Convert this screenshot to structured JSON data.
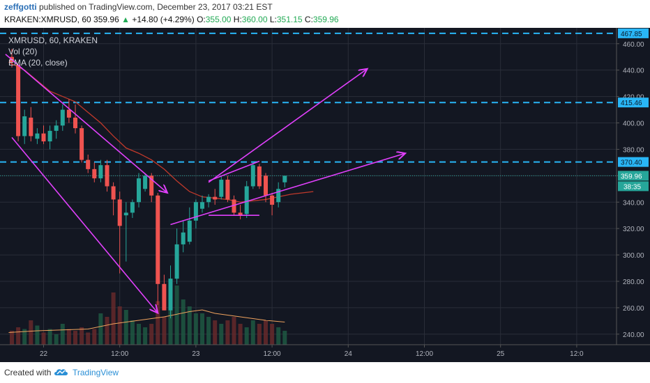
{
  "header": {
    "author": "zeffgotti",
    "published": "published on TradingView.com, December 23, 2017 03:21 EST",
    "symbol": "KRAKEN:XMRUSD, 60",
    "last": "359.96",
    "change": "+14.80 (+4.29%)",
    "o_label": "O:",
    "o_val": "355.00",
    "h_label": "H:",
    "h_val": "360.00",
    "l_label": "L:",
    "l_val": "351.15",
    "c_label": "C:",
    "c_val": "359.96"
  },
  "legend": {
    "line1": "XMRUSD, 60, KRAKEN",
    "line2": "Vol (20)",
    "line3": "EMA (20, close)"
  },
  "footer": {
    "created": "Created with",
    "brand": "TradingView"
  },
  "colors": {
    "up": "#26a69a",
    "down": "#ef5350",
    "ema": "#c0392b",
    "vol_ma": "#f0a35e",
    "arrow": "#e040fb",
    "hline": "#29b6f6",
    "grid": "#2a2e39",
    "text": "#b2b5be"
  },
  "chart_data": {
    "type": "candlestick",
    "ylim": [
      232,
      472
    ],
    "y_ticks": [
      240,
      260,
      280,
      300,
      320,
      340,
      360,
      380,
      400,
      420,
      440,
      460
    ],
    "x_ticks": [
      {
        "t": 5,
        "label": "22"
      },
      {
        "t": 17,
        "label": "12:00"
      },
      {
        "t": 29,
        "label": "23"
      },
      {
        "t": 41,
        "label": "12:00"
      },
      {
        "t": 53,
        "label": "24"
      },
      {
        "t": 65,
        "label": "12:00"
      },
      {
        "t": 77,
        "label": "25"
      },
      {
        "t": 89,
        "label": "12:0"
      }
    ],
    "price_lines": [
      {
        "value": 467.85,
        "label": "467.85"
      },
      {
        "value": 415.46,
        "label": "415.46"
      },
      {
        "value": 370.4,
        "label": "370.40"
      }
    ],
    "last_price": {
      "value": 359.96,
      "label": "359.96",
      "countdown": "38:35"
    },
    "candles": [
      {
        "o": 450,
        "h": 456,
        "l": 442,
        "c": 446
      },
      {
        "o": 444,
        "h": 446,
        "l": 386,
        "c": 390
      },
      {
        "o": 390,
        "h": 410,
        "l": 384,
        "c": 405
      },
      {
        "o": 404,
        "h": 412,
        "l": 386,
        "c": 390
      },
      {
        "o": 388,
        "h": 396,
        "l": 384,
        "c": 392
      },
      {
        "o": 392,
        "h": 398,
        "l": 384,
        "c": 386
      },
      {
        "o": 386,
        "h": 398,
        "l": 380,
        "c": 394
      },
      {
        "o": 394,
        "h": 402,
        "l": 388,
        "c": 398
      },
      {
        "o": 398,
        "h": 414,
        "l": 394,
        "c": 410
      },
      {
        "o": 410,
        "h": 418,
        "l": 400,
        "c": 404
      },
      {
        "o": 404,
        "h": 414,
        "l": 392,
        "c": 396
      },
      {
        "o": 396,
        "h": 398,
        "l": 370,
        "c": 372
      },
      {
        "o": 372,
        "h": 376,
        "l": 362,
        "c": 365
      },
      {
        "o": 365,
        "h": 370,
        "l": 355,
        "c": 358
      },
      {
        "o": 358,
        "h": 372,
        "l": 355,
        "c": 368
      },
      {
        "o": 368,
        "h": 372,
        "l": 348,
        "c": 352
      },
      {
        "o": 352,
        "h": 355,
        "l": 330,
        "c": 342
      },
      {
        "o": 342,
        "h": 348,
        "l": 286,
        "c": 322
      },
      {
        "o": 330,
        "h": 340,
        "l": 295,
        "c": 332
      },
      {
        "o": 332,
        "h": 342,
        "l": 328,
        "c": 340
      },
      {
        "o": 340,
        "h": 362,
        "l": 336,
        "c": 358
      },
      {
        "o": 350,
        "h": 362,
        "l": 348,
        "c": 360
      },
      {
        "o": 360,
        "h": 362,
        "l": 340,
        "c": 345
      },
      {
        "o": 345,
        "h": 347,
        "l": 262,
        "c": 278
      },
      {
        "o": 278,
        "h": 285,
        "l": 258,
        "c": 258
      },
      {
        "o": 258,
        "h": 292,
        "l": 252,
        "c": 282
      },
      {
        "o": 282,
        "h": 320,
        "l": 278,
        "c": 308
      },
      {
        "o": 308,
        "h": 326,
        "l": 302,
        "c": 317
      },
      {
        "o": 310,
        "h": 336,
        "l": 308,
        "c": 326
      },
      {
        "o": 326,
        "h": 342,
        "l": 320,
        "c": 340
      },
      {
        "o": 335,
        "h": 345,
        "l": 332,
        "c": 340
      },
      {
        "o": 340,
        "h": 346,
        "l": 336,
        "c": 344
      },
      {
        "o": 344,
        "h": 350,
        "l": 338,
        "c": 342
      },
      {
        "o": 344,
        "h": 360,
        "l": 342,
        "c": 357
      },
      {
        "o": 357,
        "h": 360,
        "l": 340,
        "c": 342
      },
      {
        "o": 342,
        "h": 345,
        "l": 330,
        "c": 332
      },
      {
        "o": 332,
        "h": 338,
        "l": 327,
        "c": 330
      },
      {
        "o": 331,
        "h": 356,
        "l": 328,
        "c": 352
      },
      {
        "o": 352,
        "h": 370,
        "l": 350,
        "c": 368
      },
      {
        "o": 367,
        "h": 369,
        "l": 350,
        "c": 352
      },
      {
        "o": 360,
        "h": 362,
        "l": 340,
        "c": 345
      },
      {
        "o": 345,
        "h": 347,
        "l": 330,
        "c": 338
      },
      {
        "o": 340,
        "h": 355,
        "l": 336,
        "c": 350
      },
      {
        "o": 355,
        "h": 360,
        "l": 351.15,
        "c": 359.96
      }
    ],
    "volume": [
      8,
      10,
      9,
      14,
      11,
      7,
      9,
      6,
      12,
      9,
      8,
      10,
      7,
      9,
      18,
      16,
      30,
      22,
      20,
      14,
      12,
      10,
      12,
      25,
      16,
      38,
      34,
      26,
      22,
      18,
      18,
      16,
      14,
      12,
      14,
      16,
      12,
      10,
      14,
      12,
      14,
      12,
      10,
      8
    ],
    "ema": [
      {
        "t": -0.5,
        "v": 446
      },
      {
        "t": 2,
        "v": 440
      },
      {
        "t": 4,
        "v": 432
      },
      {
        "t": 6,
        "v": 424
      },
      {
        "t": 8,
        "v": 420
      },
      {
        "t": 10,
        "v": 416
      },
      {
        "t": 12,
        "v": 408
      },
      {
        "t": 14,
        "v": 400
      },
      {
        "t": 16,
        "v": 390
      },
      {
        "t": 18,
        "v": 381
      },
      {
        "t": 20,
        "v": 377
      },
      {
        "t": 22,
        "v": 372
      },
      {
        "t": 24,
        "v": 365
      },
      {
        "t": 26,
        "v": 356
      },
      {
        "t": 28,
        "v": 348
      },
      {
        "t": 30,
        "v": 344
      },
      {
        "t": 32,
        "v": 343
      },
      {
        "t": 34,
        "v": 342
      },
      {
        "t": 36,
        "v": 340
      },
      {
        "t": 38,
        "v": 341
      },
      {
        "t": 40,
        "v": 342
      },
      {
        "t": 42,
        "v": 344
      },
      {
        "t": 44,
        "v": 346
      },
      {
        "t": 47.5,
        "v": 348
      }
    ],
    "vol_ma": [
      {
        "t": -0.5,
        "v": 7
      },
      {
        "t": 4,
        "v": 8
      },
      {
        "t": 8,
        "v": 8.5
      },
      {
        "t": 12,
        "v": 9
      },
      {
        "t": 16,
        "v": 12
      },
      {
        "t": 20,
        "v": 14
      },
      {
        "t": 24,
        "v": 16
      },
      {
        "t": 28,
        "v": 19
      },
      {
        "t": 30,
        "v": 20
      },
      {
        "t": 32,
        "v": 18
      },
      {
        "t": 36,
        "v": 16
      },
      {
        "t": 40,
        "v": 14
      },
      {
        "t": 43,
        "v": 13
      }
    ],
    "drawings": [
      {
        "x1": -1,
        "y1": 452,
        "x2": 24.5,
        "y2": 347,
        "head": true
      },
      {
        "x1": 0,
        "y1": 389,
        "x2": 23,
        "y2": 256,
        "head": true
      },
      {
        "x1": 25,
        "y1": 323,
        "x2": 62,
        "y2": 377,
        "head": true
      },
      {
        "x1": 31,
        "y1": 355,
        "x2": 56,
        "y2": 441,
        "head": true
      },
      {
        "x1": 31,
        "y1": 330,
        "x2": 39,
        "y2": 330,
        "head": false
      },
      {
        "x1": 31,
        "y1": 356,
        "x2": 39,
        "y2": 371,
        "head": false
      }
    ]
  }
}
